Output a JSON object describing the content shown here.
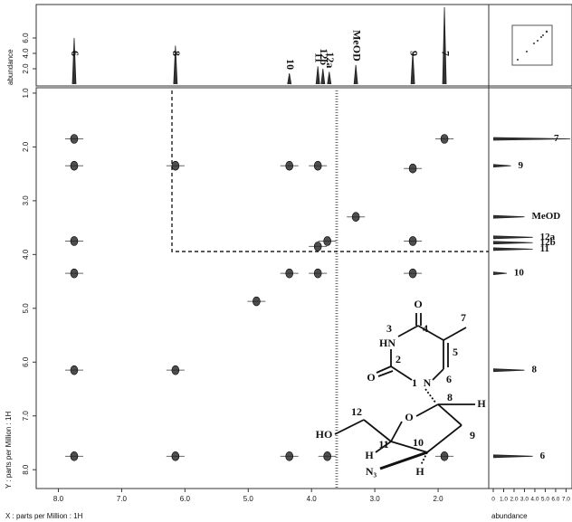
{
  "chart_data": {
    "type": "nmr2d",
    "xlabel": "X : parts per Million : 1H",
    "ylabel": "Y : parts per Million : 1H",
    "xlim": [
      8.35,
      1.2
    ],
    "xticks": [
      {
        "value": 8,
        "label": "8.0"
      },
      {
        "value": 7,
        "label": "7.0"
      },
      {
        "value": 6,
        "label": "6.0"
      },
      {
        "value": 5,
        "label": "5.0"
      },
      {
        "value": 4,
        "label": "4.0"
      },
      {
        "value": 3,
        "label": "3.0"
      },
      {
        "value": 2,
        "label": "2.0"
      }
    ],
    "ylim": [
      0.9,
      8.35
    ],
    "yticks": [
      {
        "value": 1,
        "label": "1.0"
      },
      {
        "value": 2,
        "label": "2.0"
      },
      {
        "value": 3,
        "label": "3.0"
      },
      {
        "value": 4,
        "label": "4.0"
      },
      {
        "value": 5,
        "label": "5.0"
      },
      {
        "value": 6,
        "label": "6.0"
      },
      {
        "value": 7,
        "label": "7.0"
      },
      {
        "value": 8,
        "label": "8.0"
      }
    ],
    "peaks": {
      "x": [
        7.75,
        6.15,
        4.87,
        4.35,
        3.9,
        3.75,
        3.3,
        2.4,
        1.9,
        7.75,
        7.75,
        7.75,
        7.75,
        7.75,
        6.15,
        6.15,
        4.35,
        4.35,
        3.9,
        3.9,
        2.4,
        2.4,
        1.9,
        3.75
      ],
      "y": [
        7.75,
        6.15,
        4.87,
        4.35,
        3.85,
        3.75,
        3.3,
        2.4,
        1.85,
        1.85,
        2.35,
        3.75,
        4.35,
        6.15,
        2.35,
        7.75,
        2.35,
        7.75,
        2.35,
        4.35,
        4.35,
        3.75,
        7.75,
        7.75
      ]
    },
    "top_spectrum": {
      "ylabel": "abundance",
      "ylim": [
        0,
        10
      ],
      "yticks": [
        {
          "value": 2,
          "label": "2.0"
        },
        {
          "value": 4,
          "label": "4.0"
        },
        {
          "value": 6,
          "label": "6.0"
        }
      ],
      "peaks": [
        {
          "label": "6",
          "x": 7.75,
          "height": 6.0
        },
        {
          "label": "8",
          "x": 6.15,
          "height": 5.0
        },
        {
          "label": "10",
          "x": 4.35,
          "height": 1.4
        },
        {
          "label": "11",
          "x": 3.9,
          "height": 2.3
        },
        {
          "label": "12b",
          "x": 3.82,
          "height": 2.0
        },
        {
          "label": "12a",
          "x": 3.72,
          "height": 1.6
        },
        {
          "label": "MeOD",
          "x": 3.3,
          "height": 2.5
        },
        {
          "label": "9",
          "x": 2.4,
          "height": 4.2
        },
        {
          "label": "7",
          "x": 1.9,
          "height": 10
        }
      ]
    },
    "right_spectrum": {
      "xlabel": "abundance",
      "xlim": [
        0,
        7.4
      ],
      "xticks": [
        0,
        {
          "value": 1,
          "label": "1.0"
        },
        {
          "value": 2,
          "label": "2.0"
        },
        {
          "value": 3,
          "label": "3.0"
        },
        {
          "value": 4,
          "label": "4.0"
        },
        {
          "value": 5,
          "label": "5.0"
        },
        {
          "value": 6,
          "label": "6.0"
        },
        {
          "value": 7,
          "label": "7.0"
        }
      ],
      "peaks": [
        {
          "label": "7",
          "y": 1.85,
          "height": 7.4
        },
        {
          "label": "9",
          "y": 2.35,
          "height": 1.7
        },
        {
          "label": "MeOD",
          "y": 3.3,
          "height": 3.0
        },
        {
          "label": "12a",
          "y": 3.68,
          "height": 3.8
        },
        {
          "label": "12b",
          "y": 3.78,
          "height": 3.8
        },
        {
          "label": "11",
          "y": 3.9,
          "height": 3.8
        },
        {
          "label": "10",
          "y": 4.35,
          "height": 1.3
        },
        {
          "label": "8",
          "y": 6.15,
          "height": 3.0
        },
        {
          "label": "6",
          "y": 7.75,
          "height": 3.8
        }
      ]
    }
  },
  "structure": {
    "labels": [
      "O",
      "4",
      "7",
      "3",
      "HN",
      "5",
      "2",
      "O",
      "1",
      "N",
      "6",
      "8",
      "H",
      "12",
      "O",
      "HO",
      "9",
      "H",
      "11",
      "10",
      "N₃",
      "H"
    ]
  }
}
